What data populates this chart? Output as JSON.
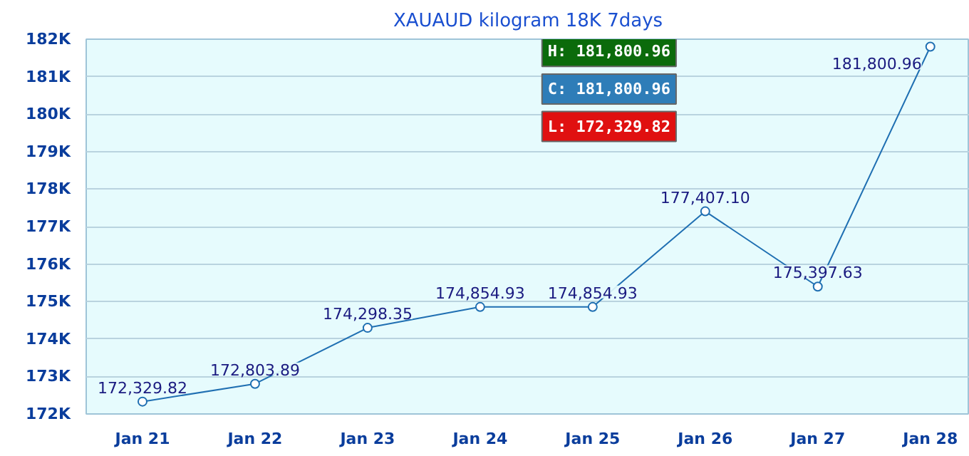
{
  "chart_data": {
    "type": "line",
    "title": "XAUAUD kilogram 18K 7days",
    "categories": [
      "Jan 21",
      "Jan 22",
      "Jan 23",
      "Jan 24",
      "Jan 25",
      "Jan 26",
      "Jan 27",
      "Jan 28"
    ],
    "series": [
      {
        "color": "#1f6fb2",
        "values": [
          172329.82,
          172803.89,
          174298.35,
          174854.93,
          174854.93,
          177407.1,
          175397.63,
          181800.96
        ],
        "value_labels": [
          "172,329.82",
          "172,803.89",
          "174,298.35",
          "174,854.93",
          "174,854.93",
          "177,407.10",
          "175,397.63",
          "181,800.96"
        ]
      }
    ],
    "ylim": [
      172000,
      182000
    ],
    "yticks": [
      {
        "value": 172000,
        "label": "172K"
      },
      {
        "value": 173000,
        "label": "173K"
      },
      {
        "value": 174000,
        "label": "174K"
      },
      {
        "value": 175000,
        "label": "175K"
      },
      {
        "value": 176000,
        "label": "176K"
      },
      {
        "value": 177000,
        "label": "177K"
      },
      {
        "value": 178000,
        "label": "178K"
      },
      {
        "value": 179000,
        "label": "179K"
      },
      {
        "value": 180000,
        "label": "180K"
      },
      {
        "value": 181000,
        "label": "181K"
      },
      {
        "value": 182000,
        "label": "182K"
      }
    ],
    "grid": "y",
    "marker": "circle",
    "line_style": "solid",
    "annotations": [
      "H: 181,800.96",
      "C: 181,800.96",
      "L: 172,329.82"
    ]
  }
}
